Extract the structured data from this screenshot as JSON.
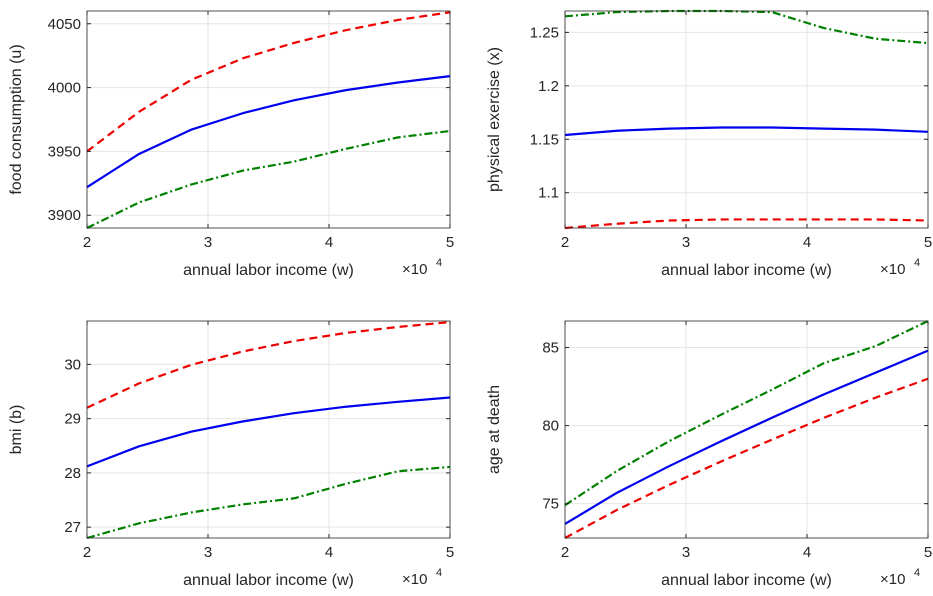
{
  "colors": {
    "median": "#0000ee",
    "upper": "#ee0000",
    "lower": "#008000",
    "grid": "#e6e6e6",
    "axis": "#262626"
  },
  "chart_data": [
    {
      "type": "line",
      "xlabel": "annual labor income (w)",
      "ylabel": "food consumption (u)",
      "x_multiplier": "×10",
      "x_multiplier_exp": "4",
      "xlim": [
        2,
        5
      ],
      "ylim": [
        3890,
        4060
      ],
      "xticks": [
        2,
        3,
        4,
        5
      ],
      "yticks": [
        3900,
        3950,
        4000,
        4050
      ],
      "x": [
        2.0,
        2.43,
        2.86,
        3.29,
        3.71,
        4.14,
        4.57,
        5.0
      ],
      "series": [
        {
          "style": "solid",
          "color": "#0000ee",
          "values": [
            3922,
            3948,
            3967,
            3980,
            3990,
            3998,
            4004,
            4009
          ]
        },
        {
          "style": "dashed",
          "color": "#ee0000",
          "values": [
            3950,
            3981,
            4006,
            4023,
            4035,
            4045,
            4053,
            4059
          ]
        },
        {
          "style": "dashdot",
          "color": "#008000",
          "values": [
            3890,
            3910,
            3924,
            3935,
            3942,
            3952,
            3961,
            3966
          ]
        }
      ]
    },
    {
      "type": "line",
      "xlabel": "annual labor income (w)",
      "ylabel": "physical exercise (x)",
      "x_multiplier": "×10",
      "x_multiplier_exp": "4",
      "xlim": [
        2,
        5
      ],
      "ylim": [
        1.067,
        1.27
      ],
      "xticks": [
        2,
        3,
        4,
        5
      ],
      "yticks": [
        1.1,
        1.15,
        1.2,
        1.25
      ],
      "ytick_labels": [
        "1.1",
        "1.15",
        "1.2",
        "1.25"
      ],
      "x": [
        2.0,
        2.43,
        2.86,
        3.29,
        3.71,
        4.14,
        4.57,
        5.0
      ],
      "series": [
        {
          "style": "solid",
          "color": "#0000ee",
          "values": [
            1.154,
            1.158,
            1.16,
            1.161,
            1.161,
            1.16,
            1.159,
            1.157
          ]
        },
        {
          "style": "dashed",
          "color": "#ee0000",
          "values": [
            1.067,
            1.071,
            1.074,
            1.075,
            1.075,
            1.075,
            1.075,
            1.074
          ]
        },
        {
          "style": "dashdot",
          "color": "#008000",
          "values": [
            1.265,
            1.269,
            1.27,
            1.27,
            1.269,
            1.254,
            1.244,
            1.24
          ]
        }
      ]
    },
    {
      "type": "line",
      "xlabel": "annual labor income (w)",
      "ylabel": "bmi (b)",
      "x_multiplier": "×10",
      "x_multiplier_exp": "4",
      "xlim": [
        2,
        5
      ],
      "ylim": [
        26.8,
        30.8
      ],
      "xticks": [
        2,
        3,
        4,
        5
      ],
      "yticks": [
        27,
        28,
        29,
        30
      ],
      "x": [
        2.0,
        2.43,
        2.86,
        3.29,
        3.71,
        4.14,
        4.57,
        5.0
      ],
      "series": [
        {
          "style": "solid",
          "color": "#0000ee",
          "values": [
            28.12,
            28.49,
            28.76,
            28.95,
            29.1,
            29.22,
            29.31,
            29.39
          ]
        },
        {
          "style": "dashed",
          "color": "#ee0000",
          "values": [
            29.2,
            29.65,
            29.99,
            30.24,
            30.43,
            30.58,
            30.69,
            30.78
          ]
        },
        {
          "style": "dashdot",
          "color": "#008000",
          "values": [
            26.8,
            27.07,
            27.27,
            27.42,
            27.53,
            27.8,
            28.03,
            28.11
          ]
        }
      ]
    },
    {
      "type": "line",
      "xlabel": "annual labor income (w)",
      "ylabel": "age at death",
      "x_multiplier": "×10",
      "x_multiplier_exp": "4",
      "xlim": [
        2,
        5
      ],
      "ylim": [
        72.8,
        86.7
      ],
      "xticks": [
        2,
        3,
        4,
        5
      ],
      "yticks": [
        75,
        80,
        85
      ],
      "x": [
        2.0,
        2.43,
        2.86,
        3.29,
        3.71,
        4.14,
        4.57,
        5.0
      ],
      "series": [
        {
          "style": "solid",
          "color": "#0000ee",
          "values": [
            73.7,
            75.7,
            77.4,
            79.0,
            80.5,
            82.0,
            83.4,
            84.8
          ]
        },
        {
          "style": "dashed",
          "color": "#ee0000",
          "values": [
            72.8,
            74.6,
            76.2,
            77.7,
            79.1,
            80.5,
            81.8,
            83.0
          ]
        },
        {
          "style": "dashdot",
          "color": "#008000",
          "values": [
            74.9,
            77.1,
            79.0,
            80.7,
            82.3,
            84.0,
            85.1,
            86.7
          ]
        }
      ]
    }
  ]
}
